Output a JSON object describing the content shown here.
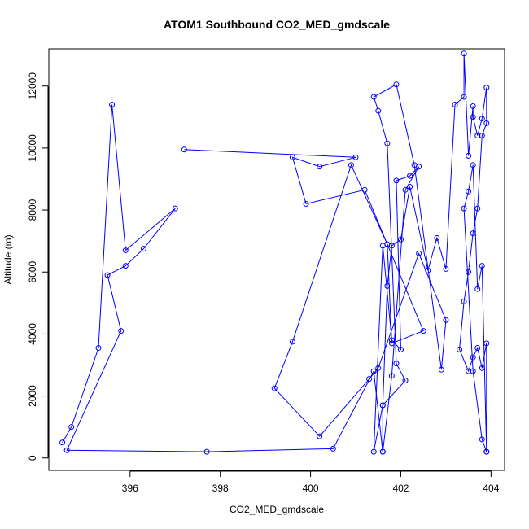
{
  "chart_data": {
    "type": "line",
    "title": "ATOM1 Southbound CO2_MED_gmdscale",
    "xlabel": "CO2_MED_gmdscale",
    "ylabel": "Altitude (m)",
    "xlim": [
      394.2,
      404.3
    ],
    "ylim": [
      -400,
      13200
    ],
    "xticks": [
      396,
      398,
      400,
      402,
      404
    ],
    "yticks": [
      0,
      2000,
      4000,
      6000,
      8000,
      10000,
      12000
    ],
    "grid": false,
    "colors": {
      "series": "#0000ff",
      "axes": "#000000",
      "background": "#ffffff"
    },
    "series": [
      {
        "marker": "open-circle",
        "x": [
          394.5,
          394.7,
          395.3,
          395.6,
          395.9,
          397.0,
          396.3,
          395.9,
          395.5,
          395.8,
          394.6,
          397.7,
          400.5,
          401.4,
          401.6,
          401.6,
          401.7,
          401.8,
          402.0,
          402.2,
          402.6,
          402.8,
          403.0,
          403.2,
          403.4,
          403.4,
          403.5,
          403.6,
          403.6,
          403.7,
          403.8,
          403.9,
          403.9,
          403.8,
          403.7,
          403.6,
          403.5,
          403.4,
          403.3,
          403.5,
          403.6,
          403.7,
          403.8,
          403.9,
          403.9,
          403.8,
          403.7,
          403.6,
          403.5,
          403.4,
          403.6,
          403.8,
          403.9
        ],
        "y": [
          500,
          1000,
          3550,
          11400,
          6700,
          8050,
          6750,
          6200,
          5900,
          4100,
          250,
          200,
          300,
          2800,
          200,
          1700,
          5550,
          6850,
          7050,
          8750,
          6050,
          7100,
          6100,
          11400,
          11650,
          13050,
          9750,
          11350,
          11000,
          10400,
          10950,
          11950,
          10800,
          10400,
          8050,
          7250,
          6000,
          5050,
          3500,
          2800,
          3250,
          3550,
          2900,
          3700,
          200,
          6200,
          5450,
          9450,
          8600,
          8050,
          2800,
          600,
          200
        ]
      },
      {
        "marker": "open-circle",
        "x": [
          397.2,
          401.0,
          400.2,
          399.6,
          399.9,
          401.2,
          402.5,
          401.8,
          401.7,
          400.9,
          399.6,
          399.2,
          400.2,
          401.3,
          401.5,
          402.4,
          403.0,
          402.9,
          402.3,
          401.9,
          401.4,
          401.5,
          401.7,
          401.9,
          402.1,
          401.6,
          401.4,
          401.6,
          401.8,
          402.0,
          401.9,
          402.2,
          402.4,
          402.1,
          401.8,
          401.6
        ],
        "y": [
          9950,
          9700,
          9400,
          9700,
          8200,
          8650,
          4100,
          3700,
          6900,
          9450,
          3750,
          2250,
          700,
          2550,
          2900,
          6600,
          4450,
          2850,
          9450,
          12050,
          11650,
          11200,
          10150,
          3050,
          2500,
          1700,
          200,
          6850,
          3800,
          3500,
          8950,
          9100,
          9400,
          8650,
          2650,
          200
        ]
      }
    ]
  }
}
